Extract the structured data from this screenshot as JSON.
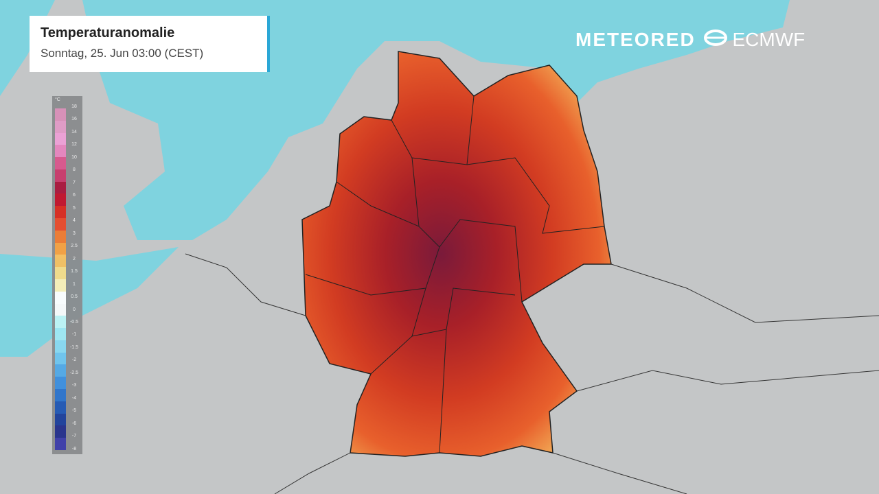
{
  "header": {
    "title": "Temperaturanomalie",
    "subtitle": "Sonntag, 25. Jun 03:00 (CEST)"
  },
  "branding": {
    "meteored": "METEORED",
    "ecmwf": "ECMWF"
  },
  "legend": {
    "unit": "°C",
    "labels": [
      "18",
      "16",
      "14",
      "12",
      "10",
      "8",
      "7",
      "6",
      "5",
      "4",
      "3",
      "2.5",
      "2",
      "1.5",
      "1",
      "0.5",
      "0",
      "-0.5",
      "-1",
      "-1.5",
      "-2",
      "-2.5",
      "-3",
      "-4",
      "-5",
      "-6",
      "-7",
      "-8"
    ],
    "colors": [
      "#d98fb8",
      "#e19ac6",
      "#eea0d6",
      "#e684be",
      "#d9558c",
      "#c8386a",
      "#a8143a",
      "#c0102a",
      "#d8281e",
      "#e6482a",
      "#ee7a30",
      "#f4a040",
      "#f6c060",
      "#f6dc88",
      "#fbf0b8",
      "#ffffff",
      "#fbfbfb",
      "#bff4f6",
      "#9ee8f4",
      "#86d8f2",
      "#6cc4ee",
      "#50a8e6",
      "#3a8ede",
      "#2a72cc",
      "#1e56b4",
      "#1a3e9a",
      "#222e8a",
      "#3a3aa8"
    ]
  },
  "map": {
    "sea_color": "#7fd3df",
    "land_color": "#c4c6c7",
    "anomaly_colors": [
      "#7a1a3a",
      "#a82028",
      "#d23c22",
      "#e8602c",
      "#f0a050"
    ]
  }
}
